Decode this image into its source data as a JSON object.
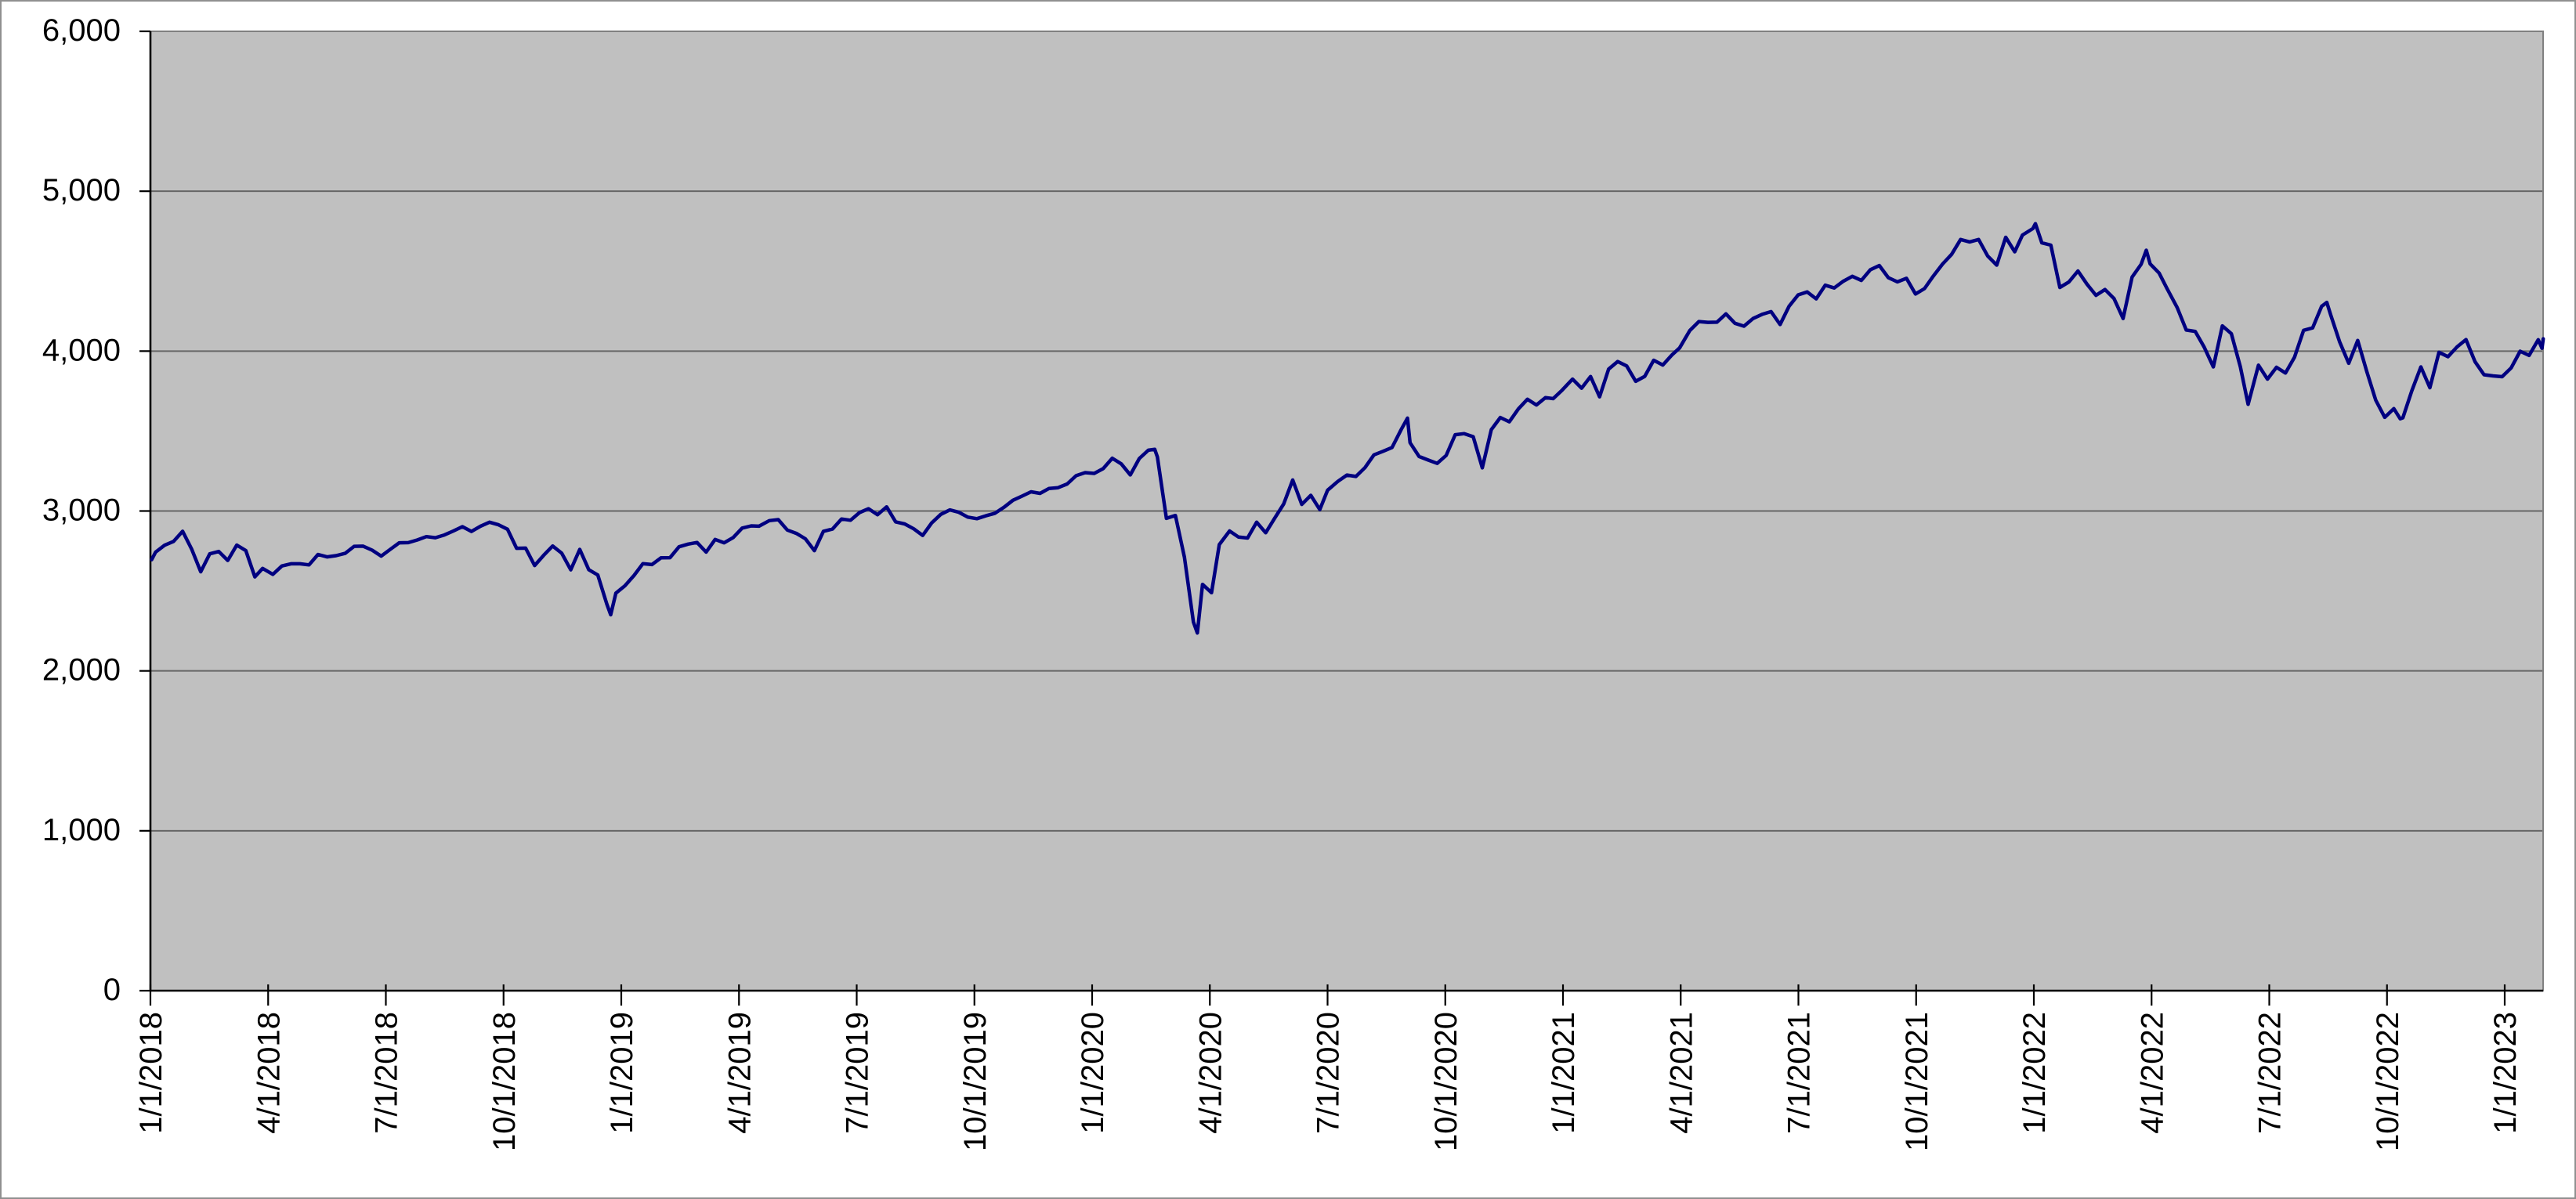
{
  "chart_data": {
    "type": "line",
    "title": "",
    "xlabel": "",
    "ylabel": "",
    "ylim": [
      0,
      6000
    ],
    "y_tick_step": 1000,
    "y_tick_labels": [
      "0",
      "1,000",
      "2,000",
      "3,000",
      "4,000",
      "5,000",
      "6,000"
    ],
    "x_tick_labels": [
      "1/1/2018",
      "4/1/2018",
      "7/1/2018",
      "10/1/2018",
      "1/1/2019",
      "4/1/2019",
      "7/1/2019",
      "10/1/2019",
      "1/1/2020",
      "4/1/2020",
      "7/1/2020",
      "10/1/2020",
      "1/1/2021",
      "4/1/2021",
      "7/1/2021",
      "10/1/2021",
      "1/1/2022",
      "4/1/2022",
      "7/1/2022",
      "10/1/2022",
      "1/1/2023"
    ],
    "x_unit": "weeks since first tick date; ticks fall every 13.04 weeks (3 months)",
    "grid": "horizontal-only",
    "legend": "none",
    "colors": {
      "line": "#000080",
      "plot_background": "#c0c0c0",
      "gridline": "#666666",
      "axis": "#000000",
      "tick": "#000000",
      "chart_border": "#808080",
      "page_background": "#ffffff"
    },
    "series": [
      {
        "name": "series-1",
        "points": [
          [
            0.14,
            2696
          ],
          [
            0.57,
            2743
          ],
          [
            1.57,
            2786
          ],
          [
            2.57,
            2810
          ],
          [
            3.57,
            2873
          ],
          [
            4.57,
            2762
          ],
          [
            5.57,
            2620
          ],
          [
            6.57,
            2732
          ],
          [
            7.57,
            2747
          ],
          [
            8.57,
            2691
          ],
          [
            9.57,
            2787
          ],
          [
            10.57,
            2752
          ],
          [
            11.57,
            2588
          ],
          [
            12.43,
            2641
          ],
          [
            13.57,
            2604
          ],
          [
            14.57,
            2656
          ],
          [
            15.57,
            2670
          ],
          [
            16.57,
            2670
          ],
          [
            17.57,
            2663
          ],
          [
            18.57,
            2728
          ],
          [
            19.57,
            2713
          ],
          [
            20.57,
            2721
          ],
          [
            21.57,
            2735
          ],
          [
            22.57,
            2779
          ],
          [
            23.57,
            2780
          ],
          [
            24.57,
            2755
          ],
          [
            25.57,
            2718
          ],
          [
            26.57,
            2760
          ],
          [
            27.57,
            2801
          ],
          [
            28.57,
            2802
          ],
          [
            29.57,
            2819
          ],
          [
            30.57,
            2840
          ],
          [
            31.57,
            2833
          ],
          [
            32.57,
            2850
          ],
          [
            33.57,
            2875
          ],
          [
            34.57,
            2902
          ],
          [
            35.57,
            2872
          ],
          [
            36.57,
            2905
          ],
          [
            37.57,
            2930
          ],
          [
            38.57,
            2914
          ],
          [
            39.57,
            2886
          ],
          [
            40.57,
            2767
          ],
          [
            41.57,
            2768
          ],
          [
            42.57,
            2659
          ],
          [
            43.57,
            2723
          ],
          [
            44.57,
            2781
          ],
          [
            45.57,
            2736
          ],
          [
            46.57,
            2632
          ],
          [
            47.57,
            2760
          ],
          [
            48.57,
            2633
          ],
          [
            49.57,
            2600
          ],
          [
            50.57,
            2417
          ],
          [
            51.0,
            2351
          ],
          [
            51.57,
            2486
          ],
          [
            52.57,
            2532
          ],
          [
            53.57,
            2596
          ],
          [
            54.57,
            2671
          ],
          [
            55.57,
            2665
          ],
          [
            56.57,
            2707
          ],
          [
            57.57,
            2708
          ],
          [
            58.57,
            2776
          ],
          [
            59.57,
            2793
          ],
          [
            60.57,
            2803
          ],
          [
            61.57,
            2743
          ],
          [
            62.57,
            2822
          ],
          [
            63.57,
            2801
          ],
          [
            64.57,
            2834
          ],
          [
            65.57,
            2893
          ],
          [
            66.57,
            2907
          ],
          [
            67.43,
            2905
          ],
          [
            68.57,
            2940
          ],
          [
            69.57,
            2946
          ],
          [
            70.57,
            2881
          ],
          [
            71.57,
            2860
          ],
          [
            72.57,
            2826
          ],
          [
            73.57,
            2752
          ],
          [
            74.57,
            2873
          ],
          [
            75.57,
            2887
          ],
          [
            76.57,
            2950
          ],
          [
            77.57,
            2942
          ],
          [
            78.57,
            2990
          ],
          [
            79.57,
            3014
          ],
          [
            80.57,
            2977
          ],
          [
            81.57,
            3026
          ],
          [
            82.57,
            2932
          ],
          [
            83.57,
            2919
          ],
          [
            84.57,
            2889
          ],
          [
            85.57,
            2847
          ],
          [
            86.57,
            2926
          ],
          [
            87.57,
            2979
          ],
          [
            88.57,
            3007
          ],
          [
            89.57,
            2992
          ],
          [
            90.57,
            2962
          ],
          [
            91.57,
            2952
          ],
          [
            92.57,
            2970
          ],
          [
            93.57,
            2986
          ],
          [
            94.57,
            3023
          ],
          [
            95.57,
            3067
          ],
          [
            96.57,
            3093
          ],
          [
            97.57,
            3120
          ],
          [
            98.57,
            3110
          ],
          [
            99.57,
            3141
          ],
          [
            100.57,
            3146
          ],
          [
            101.57,
            3169
          ],
          [
            102.57,
            3221
          ],
          [
            103.57,
            3240
          ],
          [
            104.57,
            3235
          ],
          [
            105.57,
            3265
          ],
          [
            106.57,
            3330
          ],
          [
            107.57,
            3295
          ],
          [
            108.57,
            3226
          ],
          [
            109.57,
            3328
          ],
          [
            110.57,
            3380
          ],
          [
            111.28,
            3386
          ],
          [
            111.57,
            3338
          ],
          [
            112.57,
            2954
          ],
          [
            113.57,
            2972
          ],
          [
            114.57,
            2711
          ],
          [
            115.57,
            2305
          ],
          [
            116.0,
            2237
          ],
          [
            116.57,
            2541
          ],
          [
            117.57,
            2489
          ],
          [
            118.43,
            2790
          ],
          [
            119.57,
            2875
          ],
          [
            120.57,
            2837
          ],
          [
            121.57,
            2831
          ],
          [
            122.57,
            2930
          ],
          [
            123.57,
            2864
          ],
          [
            124.57,
            2955
          ],
          [
            125.57,
            3044
          ],
          [
            126.57,
            3194
          ],
          [
            127.57,
            3041
          ],
          [
            128.57,
            3098
          ],
          [
            129.57,
            3009
          ],
          [
            130.43,
            3130
          ],
          [
            131.57,
            3185
          ],
          [
            132.57,
            3225
          ],
          [
            133.57,
            3216
          ],
          [
            134.57,
            3271
          ],
          [
            135.57,
            3351
          ],
          [
            136.57,
            3373
          ],
          [
            137.57,
            3397
          ],
          [
            138.57,
            3508
          ],
          [
            139.28,
            3581
          ],
          [
            139.57,
            3427
          ],
          [
            140.57,
            3341
          ],
          [
            141.57,
            3319
          ],
          [
            142.57,
            3298
          ],
          [
            143.57,
            3348
          ],
          [
            144.57,
            3477
          ],
          [
            145.57,
            3484
          ],
          [
            146.57,
            3465
          ],
          [
            147.57,
            3270
          ],
          [
            148.57,
            3509
          ],
          [
            149.57,
            3585
          ],
          [
            150.57,
            3558
          ],
          [
            151.57,
            3638
          ],
          [
            152.57,
            3699
          ],
          [
            153.57,
            3663
          ],
          [
            154.57,
            3709
          ],
          [
            155.43,
            3703
          ],
          [
            156.43,
            3756
          ],
          [
            157.57,
            3825
          ],
          [
            158.57,
            3768
          ],
          [
            159.57,
            3841
          ],
          [
            160.57,
            3714
          ],
          [
            161.57,
            3887
          ],
          [
            162.57,
            3935
          ],
          [
            163.57,
            3907
          ],
          [
            164.57,
            3811
          ],
          [
            165.57,
            3842
          ],
          [
            166.57,
            3943
          ],
          [
            167.57,
            3913
          ],
          [
            168.57,
            3975
          ],
          [
            169.43,
            4020
          ],
          [
            170.57,
            4129
          ],
          [
            171.57,
            4185
          ],
          [
            172.57,
            4180
          ],
          [
            173.57,
            4181
          ],
          [
            174.57,
            4233
          ],
          [
            175.57,
            4174
          ],
          [
            176.57,
            4156
          ],
          [
            177.57,
            4204
          ],
          [
            178.57,
            4230
          ],
          [
            179.57,
            4247
          ],
          [
            180.57,
            4166
          ],
          [
            181.57,
            4281
          ],
          [
            182.57,
            4352
          ],
          [
            183.57,
            4370
          ],
          [
            184.57,
            4327
          ],
          [
            185.57,
            4412
          ],
          [
            186.57,
            4395
          ],
          [
            187.57,
            4437
          ],
          [
            188.57,
            4468
          ],
          [
            189.57,
            4442
          ],
          [
            190.57,
            4509
          ],
          [
            191.57,
            4535
          ],
          [
            192.57,
            4459
          ],
          [
            193.57,
            4433
          ],
          [
            194.57,
            4455
          ],
          [
            195.57,
            4357
          ],
          [
            196.57,
            4391
          ],
          [
            197.57,
            4471
          ],
          [
            198.57,
            4545
          ],
          [
            199.57,
            4605
          ],
          [
            200.57,
            4698
          ],
          [
            201.57,
            4683
          ],
          [
            202.57,
            4698
          ],
          [
            203.57,
            4595
          ],
          [
            204.57,
            4538
          ],
          [
            205.57,
            4712
          ],
          [
            206.57,
            4621
          ],
          [
            207.43,
            4726
          ],
          [
            208.57,
            4766
          ],
          [
            208.86,
            4797
          ],
          [
            209.57,
            4677
          ],
          [
            210.57,
            4663
          ],
          [
            211.57,
            4398
          ],
          [
            212.57,
            4432
          ],
          [
            213.57,
            4501
          ],
          [
            214.57,
            4419
          ],
          [
            215.57,
            4349
          ],
          [
            216.57,
            4385
          ],
          [
            217.57,
            4329
          ],
          [
            218.57,
            4204
          ],
          [
            219.57,
            4463
          ],
          [
            220.57,
            4543
          ],
          [
            221.14,
            4631
          ],
          [
            221.57,
            4546
          ],
          [
            222.57,
            4488
          ],
          [
            223.43,
            4393
          ],
          [
            224.57,
            4272
          ],
          [
            225.57,
            4132
          ],
          [
            226.57,
            4123
          ],
          [
            227.57,
            4024
          ],
          [
            228.57,
            3901
          ],
          [
            229.57,
            4158
          ],
          [
            230.57,
            4109
          ],
          [
            231.57,
            3901
          ],
          [
            232.43,
            3667
          ],
          [
            233.57,
            3912
          ],
          [
            234.57,
            3825
          ],
          [
            235.57,
            3899
          ],
          [
            236.57,
            3863
          ],
          [
            237.57,
            3962
          ],
          [
            238.57,
            4130
          ],
          [
            239.57,
            4145
          ],
          [
            240.57,
            4280
          ],
          [
            241.14,
            4305
          ],
          [
            241.57,
            4228
          ],
          [
            242.57,
            4058
          ],
          [
            243.57,
            3924
          ],
          [
            244.57,
            4067
          ],
          [
            245.57,
            3873
          ],
          [
            246.57,
            3693
          ],
          [
            247.57,
            3586
          ],
          [
            248.57,
            3640
          ],
          [
            249.28,
            3577
          ],
          [
            249.57,
            3583
          ],
          [
            250.57,
            3753
          ],
          [
            251.57,
            3901
          ],
          [
            252.57,
            3771
          ],
          [
            253.57,
            3993
          ],
          [
            254.57,
            3965
          ],
          [
            255.57,
            4026
          ],
          [
            256.57,
            4072
          ],
          [
            257.57,
            3934
          ],
          [
            258.57,
            3852
          ],
          [
            259.57,
            3845
          ],
          [
            260.57,
            3840
          ],
          [
            261.57,
            3895
          ],
          [
            262.57,
            3999
          ],
          [
            263.57,
            3973
          ],
          [
            264.57,
            4071
          ],
          [
            264.99,
            4018
          ],
          [
            265.13,
            4077
          ]
        ]
      }
    ]
  }
}
